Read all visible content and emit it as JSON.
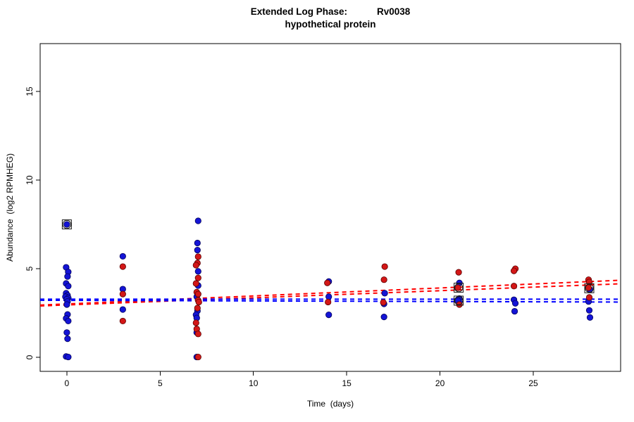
{
  "chart_data": {
    "type": "scatter",
    "title": {
      "label": "Extended Log Phase:",
      "gene": "Rv0038",
      "subtitle": "hypothetical protein"
    },
    "xlabel": "Time  (days)",
    "ylabel": "Abundance  (log2 RPMHEG)",
    "x_ticks": [
      0,
      5,
      10,
      15,
      20,
      25
    ],
    "y_ticks": [
      0,
      5,
      10,
      15
    ],
    "xlim": [
      -1.43,
      29.68
    ],
    "ylim": [
      -0.79,
      17.7
    ],
    "grid": false,
    "legend": "none",
    "colors": {
      "blue_points": "#1414d6",
      "blue_points_edge": "#00005a",
      "red_points": "#d31717",
      "red_points_edge": "#5a0000",
      "blue_line": "#0000ff",
      "red_line": "#ff0000",
      "flag_outline": "#1a1a1a",
      "axis": "#000000"
    },
    "series": [
      {
        "name": "blue",
        "points": [
          [
            0,
            7.5,
            0
          ],
          [
            0,
            5.08,
            -1
          ],
          [
            0,
            4.82,
            2
          ],
          [
            0,
            4.56,
            1
          ],
          [
            0,
            4.17,
            -1
          ],
          [
            0,
            4.02,
            2
          ],
          [
            0,
            3.62,
            -1
          ],
          [
            0,
            3.5,
            1
          ],
          [
            0,
            3.42,
            -2
          ],
          [
            0,
            3.35,
            2
          ],
          [
            0,
            3.28,
            0
          ],
          [
            0,
            3.15,
            1
          ],
          [
            0,
            2.98,
            0
          ],
          [
            0,
            2.42,
            1
          ],
          [
            0,
            2.2,
            -1
          ],
          [
            0,
            2.05,
            2
          ],
          [
            0,
            1.4,
            0
          ],
          [
            0,
            1.05,
            1
          ],
          [
            0,
            0.05,
            -1
          ],
          [
            0,
            0.02,
            2
          ],
          [
            3,
            5.7,
            0
          ],
          [
            3,
            3.85,
            0
          ],
          [
            3,
            2.7,
            0
          ],
          [
            7,
            7.7,
            1
          ],
          [
            7,
            6.45,
            0
          ],
          [
            7,
            6.05,
            0
          ],
          [
            7,
            4.85,
            1
          ],
          [
            7,
            4.05,
            1
          ],
          [
            7,
            3.42,
            -1
          ],
          [
            7,
            2.62,
            0
          ],
          [
            7,
            2.4,
            -2
          ],
          [
            7,
            2.22,
            -1
          ],
          [
            7,
            1.4,
            -1
          ],
          [
            7,
            0.02,
            -1
          ],
          [
            14,
            4.28,
            1
          ],
          [
            14,
            3.42,
            1
          ],
          [
            14,
            2.4,
            1
          ],
          [
            17,
            3.62,
            1
          ],
          [
            17,
            3.02,
            0
          ],
          [
            17,
            2.28,
            0
          ],
          [
            21,
            4.2,
            1
          ],
          [
            21,
            3.32,
            1
          ],
          [
            21,
            3.2,
            -1
          ],
          [
            24,
            3.25,
            -1
          ],
          [
            24,
            3.05,
            1
          ],
          [
            24,
            2.6,
            0
          ],
          [
            28,
            3.82,
            1
          ],
          [
            28,
            3.15,
            -1
          ],
          [
            28,
            2.65,
            0
          ],
          [
            28,
            2.25,
            1
          ]
        ]
      },
      {
        "name": "red",
        "points": [
          [
            3,
            5.12,
            0
          ],
          [
            3,
            3.57,
            0
          ],
          [
            3,
            2.05,
            0
          ],
          [
            7,
            5.68,
            1
          ],
          [
            7,
            5.32,
            0
          ],
          [
            7,
            5.2,
            -2
          ],
          [
            7,
            4.48,
            1
          ],
          [
            7,
            4.17,
            -2
          ],
          [
            7,
            3.68,
            -1
          ],
          [
            7,
            3.57,
            1
          ],
          [
            7,
            3.22,
            1
          ],
          [
            7,
            3.12,
            2
          ],
          [
            7,
            2.78,
            0
          ],
          [
            7,
            1.95,
            -2
          ],
          [
            7,
            1.6,
            -1
          ],
          [
            7,
            1.32,
            1
          ],
          [
            7,
            0.02,
            1
          ],
          [
            14,
            4.2,
            -1
          ],
          [
            14,
            3.12,
            0
          ],
          [
            17,
            5.12,
            1
          ],
          [
            17,
            4.38,
            0
          ],
          [
            17,
            3.1,
            -1
          ],
          [
            21,
            4.8,
            0
          ],
          [
            21,
            3.93,
            -1
          ],
          [
            21,
            2.98,
            1
          ],
          [
            24,
            5.0,
            1
          ],
          [
            24,
            4.88,
            -1
          ],
          [
            24,
            4.02,
            -1
          ],
          [
            28,
            4.38,
            -1
          ],
          [
            28,
            4.25,
            0
          ],
          [
            28,
            3.93,
            -1
          ],
          [
            28,
            3.38,
            0
          ]
        ]
      }
    ],
    "trend_lines": [
      {
        "color": "red",
        "x": [
          -1.43,
          29.68
        ],
        "y": [
          2.95,
          4.35
        ]
      },
      {
        "color": "red",
        "x": [
          -1.43,
          29.68
        ],
        "y": [
          2.9,
          4.15
        ]
      },
      {
        "color": "blue",
        "x": [
          -1.43,
          29.68
        ],
        "y": [
          3.28,
          3.28
        ]
      },
      {
        "color": "blue",
        "x": [
          -1.43,
          29.68
        ],
        "y": [
          3.22,
          3.12
        ]
      }
    ],
    "flagged_points": [
      [
        0,
        7.5
      ],
      [
        21,
        3.93
      ],
      [
        21,
        3.2
      ],
      [
        28,
        3.9
      ]
    ]
  }
}
